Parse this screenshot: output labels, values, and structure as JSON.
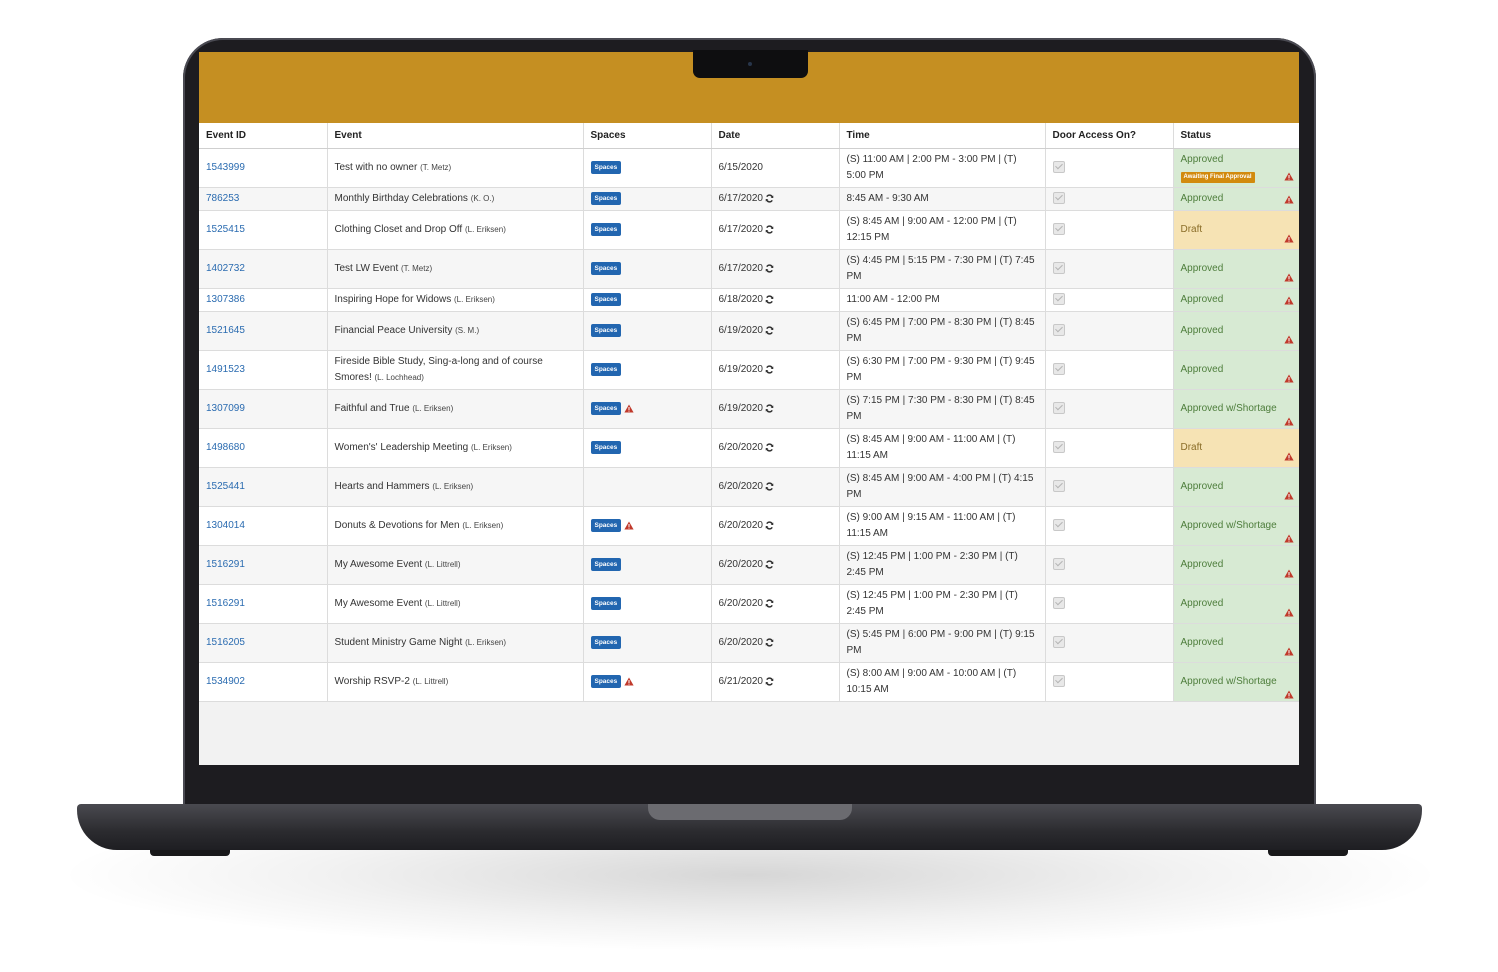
{
  "colors": {
    "header_bar": "#c58f22",
    "link": "#2a6bb0",
    "spaces_badge": "#2266b0",
    "approved_bg": "#d7ead3",
    "draft_bg": "#f6e3b4",
    "final_badge": "#d28a0e",
    "warning": "#c0392b"
  },
  "table": {
    "columns": [
      "Event ID",
      "Event",
      "Spaces",
      "Date",
      "Time",
      "Door Access On?",
      "Status"
    ],
    "spaces_label": "Spaces",
    "final_approval_label": "Awaiting Final Approval",
    "rows": [
      {
        "id": "1543999",
        "event": "Test with no owner",
        "contact": "(T. Metz)",
        "spaces": true,
        "spaces_warning": false,
        "date": "6/15/2020",
        "recurring": false,
        "time": "(S) 11:00 AM | 2:00 PM - 3:00 PM | (T) 5:00 PM",
        "door_access": true,
        "status": "Approved",
        "status_type": "approved",
        "awaiting_final": true
      },
      {
        "id": "786253",
        "event": "Monthly Birthday Celebrations",
        "contact": "(K. O.)",
        "spaces": true,
        "spaces_warning": false,
        "date": "6/17/2020",
        "recurring": true,
        "time": "8:45 AM - 9:30 AM",
        "door_access": true,
        "status": "Approved",
        "status_type": "approved",
        "awaiting_final": false
      },
      {
        "id": "1525415",
        "event": "Clothing Closet and Drop Off",
        "contact": "(L. Eriksen)",
        "spaces": true,
        "spaces_warning": false,
        "date": "6/17/2020",
        "recurring": true,
        "time": "(S) 8:45 AM | 9:00 AM - 12:00 PM | (T) 12:15 PM",
        "door_access": true,
        "status": "Draft",
        "status_type": "draft",
        "awaiting_final": false
      },
      {
        "id": "1402732",
        "event": "Test LW Event",
        "contact": "(T. Metz)",
        "spaces": true,
        "spaces_warning": false,
        "date": "6/17/2020",
        "recurring": true,
        "time": "(S) 4:45 PM | 5:15 PM - 7:30 PM | (T) 7:45 PM",
        "door_access": true,
        "status": "Approved",
        "status_type": "approved",
        "awaiting_final": false
      },
      {
        "id": "1307386",
        "event": "Inspiring Hope for Widows",
        "contact": "(L. Eriksen)",
        "spaces": true,
        "spaces_warning": false,
        "date": "6/18/2020",
        "recurring": true,
        "time": "11:00 AM - 12:00 PM",
        "door_access": true,
        "status": "Approved",
        "status_type": "approved",
        "awaiting_final": false
      },
      {
        "id": "1521645",
        "event": "Financial Peace University",
        "contact": "(S. M.)",
        "spaces": true,
        "spaces_warning": false,
        "date": "6/19/2020",
        "recurring": true,
        "time": "(S) 6:45 PM | 7:00 PM - 8:30 PM | (T) 8:45 PM",
        "door_access": true,
        "status": "Approved",
        "status_type": "approved",
        "awaiting_final": false
      },
      {
        "id": "1491523",
        "event": "Fireside Bible Study, Sing-a-long and of course Smores!",
        "contact": "(L. Lochhead)",
        "spaces": true,
        "spaces_warning": false,
        "date": "6/19/2020",
        "recurring": true,
        "time": "(S) 6:30 PM | 7:00 PM - 9:30 PM | (T) 9:45 PM",
        "door_access": true,
        "status": "Approved",
        "status_type": "approved",
        "awaiting_final": false
      },
      {
        "id": "1307099",
        "event": "Faithful and True",
        "contact": "(L. Eriksen)",
        "spaces": true,
        "spaces_warning": true,
        "date": "6/19/2020",
        "recurring": true,
        "time": "(S) 7:15 PM | 7:30 PM - 8:30 PM | (T) 8:45 PM",
        "door_access": true,
        "status": "Approved w/Shortage",
        "status_type": "shortage",
        "awaiting_final": false
      },
      {
        "id": "1498680",
        "event": "Women's' Leadership Meeting",
        "contact": "(L. Eriksen)",
        "spaces": true,
        "spaces_warning": false,
        "date": "6/20/2020",
        "recurring": true,
        "time": "(S) 8:45 AM | 9:00 AM - 11:00 AM | (T) 11:15 AM",
        "door_access": true,
        "status": "Draft",
        "status_type": "draft",
        "awaiting_final": false
      },
      {
        "id": "1525441",
        "event": "Hearts and Hammers",
        "contact": "(L. Eriksen)",
        "spaces": false,
        "spaces_warning": false,
        "date": "6/20/2020",
        "recurring": true,
        "time": "(S) 8:45 AM | 9:00 AM - 4:00 PM | (T) 4:15 PM",
        "door_access": true,
        "status": "Approved",
        "status_type": "approved",
        "awaiting_final": false
      },
      {
        "id": "1304014",
        "event": "Donuts & Devotions for Men",
        "contact": "(L. Eriksen)",
        "spaces": true,
        "spaces_warning": true,
        "date": "6/20/2020",
        "recurring": true,
        "time": "(S) 9:00 AM | 9:15 AM - 11:00 AM | (T) 11:15 AM",
        "door_access": true,
        "status": "Approved w/Shortage",
        "status_type": "shortage",
        "awaiting_final": false
      },
      {
        "id": "1516291",
        "event": "My Awesome Event",
        "contact": "(L. Littrell)",
        "spaces": true,
        "spaces_warning": false,
        "date": "6/20/2020",
        "recurring": true,
        "time": "(S) 12:45 PM | 1:00 PM - 2:30 PM | (T) 2:45 PM",
        "door_access": true,
        "status": "Approved",
        "status_type": "approved",
        "awaiting_final": false
      },
      {
        "id": "1516291",
        "event": "My Awesome Event",
        "contact": "(L. Littrell)",
        "spaces": true,
        "spaces_warning": false,
        "date": "6/20/2020",
        "recurring": true,
        "time": "(S) 12:45 PM | 1:00 PM - 2:30 PM | (T) 2:45 PM",
        "door_access": true,
        "status": "Approved",
        "status_type": "approved",
        "awaiting_final": false
      },
      {
        "id": "1516205",
        "event": "Student Ministry Game Night",
        "contact": "(L. Eriksen)",
        "spaces": true,
        "spaces_warning": false,
        "date": "6/20/2020",
        "recurring": true,
        "time": "(S) 5:45 PM | 6:00 PM - 9:00 PM | (T) 9:15 PM",
        "door_access": true,
        "status": "Approved",
        "status_type": "approved",
        "awaiting_final": false
      },
      {
        "id": "1534902",
        "event": "Worship RSVP-2",
        "contact": "(L. Littrell)",
        "spaces": true,
        "spaces_warning": true,
        "date": "6/21/2020",
        "recurring": true,
        "time": "(S) 8:00 AM | 9:00 AM - 10:00 AM | (T) 10:15 AM",
        "door_access": true,
        "status": "Approved w/Shortage",
        "status_type": "shortage",
        "awaiting_final": false
      }
    ]
  }
}
